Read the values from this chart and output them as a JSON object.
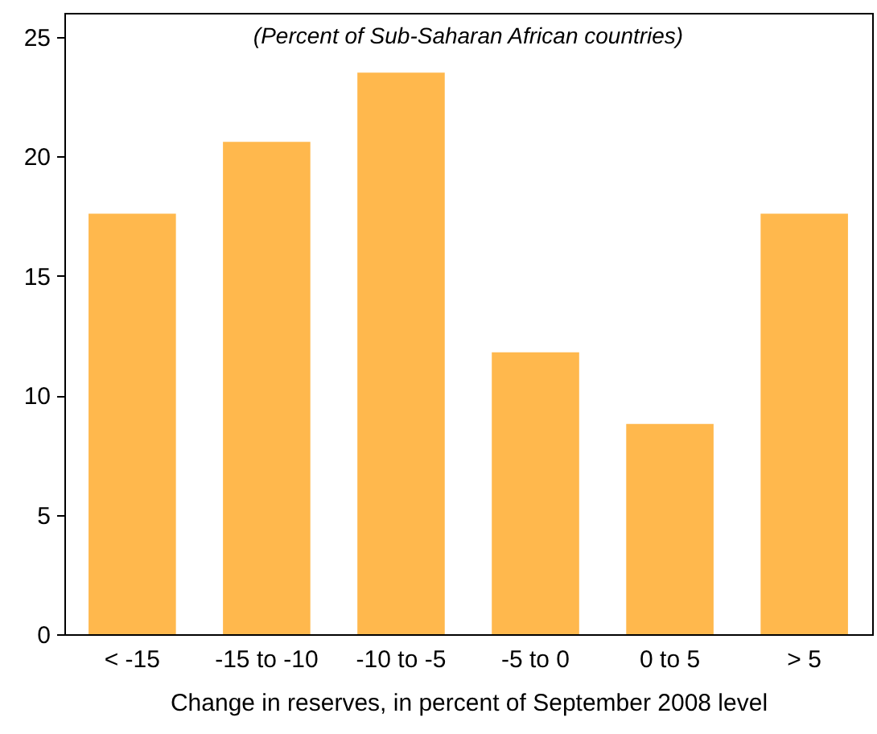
{
  "chart_data": {
    "type": "bar",
    "title": "(Percent of Sub-Saharan African countries)",
    "xlabel": "Change in reserves, in percent of September 2008 level",
    "categories": [
      "< -15",
      "-15 to -10",
      "-10 to -5",
      "-5 to 0",
      "0 to 5",
      "> 5"
    ],
    "values": [
      17.6,
      20.6,
      23.5,
      11.8,
      8.8,
      17.6
    ],
    "color": "#ffb84d",
    "ylim": [
      0,
      26
    ],
    "yticks": [
      0,
      5,
      10,
      15,
      20,
      25
    ],
    "grid": false
  }
}
